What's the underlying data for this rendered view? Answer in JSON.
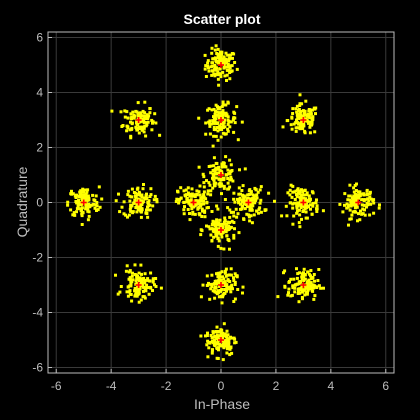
{
  "chart_data": {
    "type": "scatter",
    "title": "Scatter plot",
    "xlabel": "In-Phase",
    "ylabel": "Quadrature",
    "xlim": [
      -6.3,
      6.3
    ],
    "ylim": [
      -6.2,
      6.2
    ],
    "xticks": [
      -6,
      -4,
      -2,
      0,
      2,
      4,
      6
    ],
    "yticks": [
      -6,
      -4,
      -2,
      0,
      2,
      4,
      6
    ],
    "tick_labels_x": [
      "-6",
      "-4",
      "-2",
      "0",
      "2",
      "4",
      "6"
    ],
    "tick_labels_y": [
      "-6",
      "-4",
      "-2",
      "0",
      "2",
      "4",
      "6"
    ],
    "grid": true,
    "background": "#000000",
    "axes_color": "#bdbdbd",
    "grid_color": "#3a3a3a",
    "point_color": "#ffff00",
    "center_color": "#ff0000",
    "cluster_spread": 0.28,
    "points_per_cluster": 110,
    "constellation": [
      {
        "x": 0,
        "y": 5
      },
      {
        "x": -3,
        "y": 3
      },
      {
        "x": 0,
        "y": 3
      },
      {
        "x": 3,
        "y": 3
      },
      {
        "x": 0,
        "y": 1
      },
      {
        "x": -5,
        "y": 0
      },
      {
        "x": -3,
        "y": 0
      },
      {
        "x": -1,
        "y": 0
      },
      {
        "x": 1,
        "y": 0
      },
      {
        "x": 3,
        "y": 0
      },
      {
        "x": 5,
        "y": 0
      },
      {
        "x": 0,
        "y": -1
      },
      {
        "x": -3,
        "y": -3
      },
      {
        "x": 0,
        "y": -3
      },
      {
        "x": 3,
        "y": -3
      },
      {
        "x": 0,
        "y": -5
      }
    ]
  }
}
